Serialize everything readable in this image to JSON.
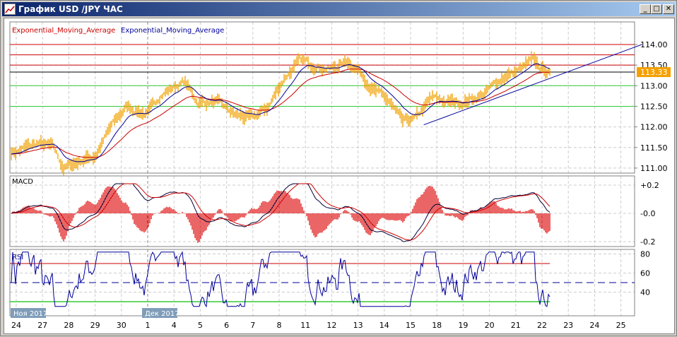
{
  "window": {
    "title": "График USD /JPY  ЧАС",
    "buttons": {
      "minimize": "_",
      "maximize": "□",
      "close": "✕"
    }
  },
  "legend": {
    "ema1": "Exponential_Moving_Average",
    "ema2": "Exponential_Moving_Average",
    "ema1_color": "#cc0000",
    "ema2_color": "#000099"
  },
  "price_axis": {
    "ticks": [
      "114.00",
      "113.50",
      "113.00",
      "112.50",
      "112.00",
      "111.50",
      "111.00"
    ],
    "tick_values": [
      114,
      113.5,
      113,
      112.5,
      112,
      111.5,
      111
    ],
    "current": "113.33",
    "current_value": 113.33,
    "current_color": "#f5a000"
  },
  "levels": {
    "red": [
      114.0,
      113.75,
      113.5
    ],
    "black": [
      113.33
    ],
    "green": [
      113.0,
      112.5
    ]
  },
  "macd": {
    "label": "MACD",
    "ticks": [
      "+0.2",
      "-0.0",
      "-0.2"
    ],
    "tick_values": [
      0.2,
      0,
      -0.2
    ]
  },
  "rsi": {
    "label": "RSI",
    "ticks": [
      "80",
      "60",
      "40"
    ],
    "tick_values": [
      80,
      60,
      40
    ],
    "overbought": 70,
    "oversold": 30,
    "mid": 50
  },
  "x_axis": {
    "ticks": [
      "24",
      "27",
      "28",
      "29",
      "30",
      "1",
      "4",
      "5",
      "6",
      "7",
      "8",
      "11",
      "12",
      "13",
      "14",
      "15",
      "18",
      "19",
      "20",
      "21",
      "22",
      "23",
      "24",
      "25"
    ],
    "month_labels": [
      {
        "label": "Ноя 2017",
        "tick": 0
      },
      {
        "label": "Дек 2017",
        "tick": 5
      }
    ]
  },
  "chart_data": {
    "type": "line",
    "title": "USD /JPY",
    "series": [
      {
        "name": "USD/JPY",
        "price_keypoints_by_tick": [
          [
            0,
            111.4
          ],
          [
            0.8,
            111.6
          ],
          [
            1.4,
            111.5
          ],
          [
            1.8,
            111.0
          ],
          [
            2.5,
            111.2
          ],
          [
            3,
            111.3
          ],
          [
            3.6,
            112.0
          ],
          [
            4.2,
            112.5
          ],
          [
            5,
            112.3
          ],
          [
            5.5,
            112.8
          ],
          [
            6.4,
            113.1
          ],
          [
            6.9,
            112.6
          ],
          [
            7.6,
            112.6
          ],
          [
            8.3,
            112.3
          ],
          [
            9,
            112.2
          ],
          [
            9.6,
            112.5
          ],
          [
            10.2,
            113.2
          ],
          [
            10.8,
            113.6
          ],
          [
            11.4,
            113.5
          ],
          [
            12,
            113.4
          ],
          [
            12.6,
            113.6
          ],
          [
            13,
            113.4
          ],
          [
            13.6,
            112.9
          ],
          [
            14.2,
            112.6
          ],
          [
            14.7,
            112.1
          ],
          [
            15.2,
            112.2
          ],
          [
            15.8,
            112.7
          ],
          [
            16.4,
            112.6
          ],
          [
            17,
            112.6
          ],
          [
            17.8,
            112.8
          ],
          [
            18.5,
            113.2
          ],
          [
            19.2,
            113.4
          ],
          [
            19.6,
            113.6
          ],
          [
            20,
            113.4
          ],
          [
            20.3,
            113.33
          ]
        ]
      }
    ],
    "trendline": {
      "from_tick": 15.5,
      "from": 112.05,
      "to_tick": 23.8,
      "to": 114.0
    },
    "ylim": [
      111,
      114
    ]
  }
}
